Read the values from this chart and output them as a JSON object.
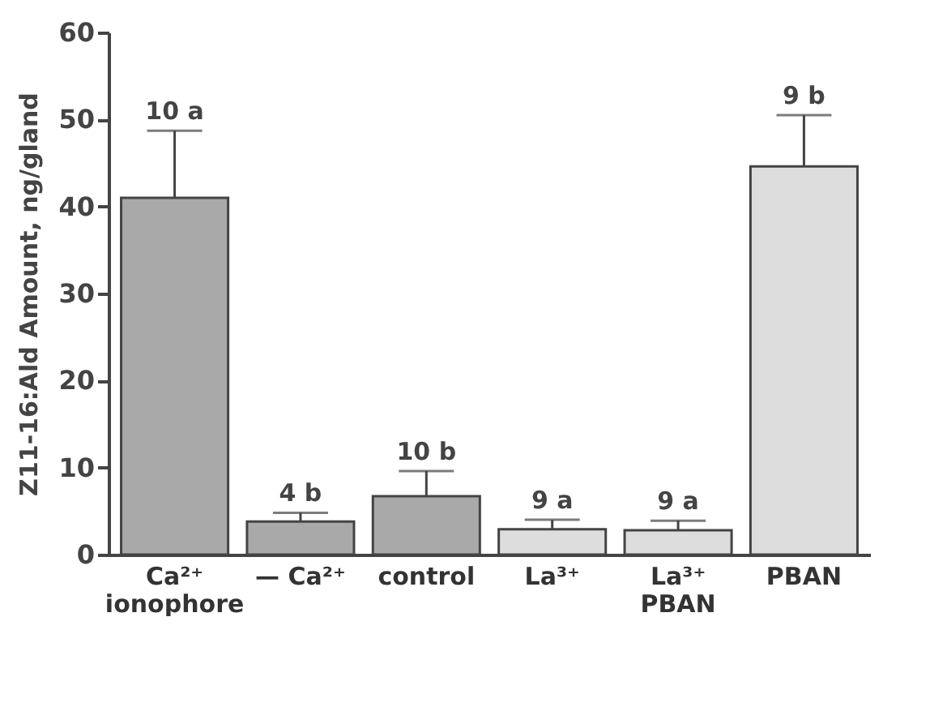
{
  "chart_data": {
    "type": "bar",
    "ylabel": "Z11-16:Ald Amount, ng/gland",
    "categories": [
      "Ca²⁺ ionophore",
      "— Ca²⁺",
      "control",
      "La³⁺",
      "La³⁺ PBAN",
      "PBAN"
    ],
    "values": [
      41,
      3.8,
      6.7,
      2.9,
      2.8,
      44.6
    ],
    "errors": [
      [
        41,
        48.7
      ],
      [
        3.8,
        4.8
      ],
      [
        6.7,
        9.6
      ],
      [
        2.9,
        4.0
      ],
      [
        2.8,
        3.9
      ],
      [
        44.6,
        50.5
      ]
    ],
    "colors": [
      "#a9a9a9",
      "#a9a9a9",
      "#a9a9a9",
      "#dddddd",
      "#dddddd",
      "#dddddd"
    ],
    "annotations": [
      {
        "text": "10 a",
        "x": "Ca²⁺ ionophore",
        "y": 48.7
      },
      {
        "text": "4 b",
        "x": "— Ca²⁺",
        "y": 4.8
      },
      {
        "text": "10 b",
        "x": "control",
        "y": 9.6
      },
      {
        "text": "9 a",
        "x": "La³⁺",
        "y": 4.0
      },
      {
        "text": "9 a",
        "x": "La³⁺ PBAN",
        "y": 3.9
      },
      {
        "text": "9 b",
        "x": "PBAN",
        "y": 50.5
      }
    ],
    "ylim": [
      0,
      60
    ],
    "yticks": [
      0,
      10,
      20,
      30,
      40,
      50,
      60
    ],
    "grid": false,
    "legend": false
  }
}
